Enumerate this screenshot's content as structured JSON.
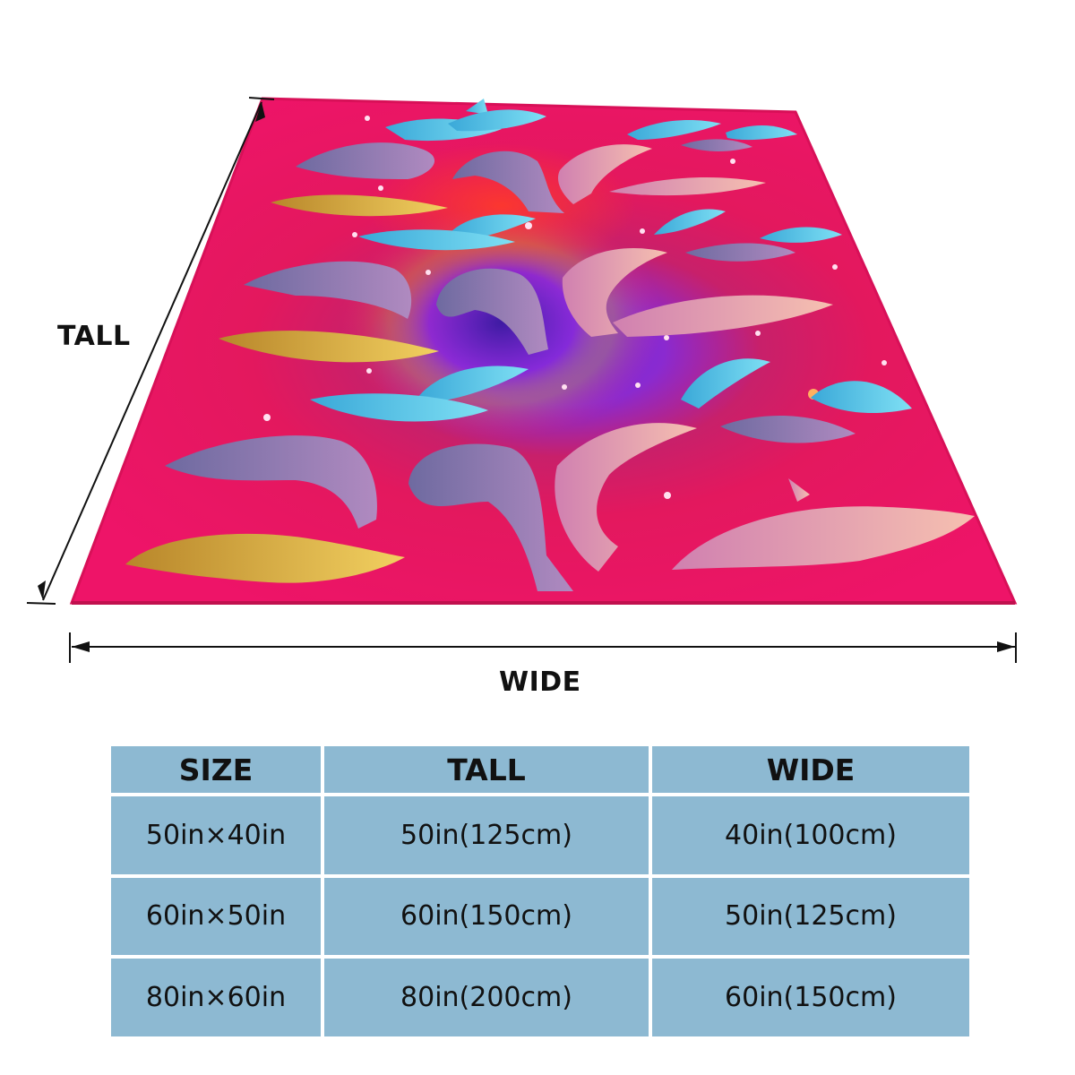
{
  "labels": {
    "tall": "TALL",
    "wide": "WIDE"
  },
  "illustration": {
    "subject": "pink rainbow dolphin blanket",
    "colors": {
      "edge": "#e9155f",
      "center_red": "#ff2a3a",
      "center_violet": "#7b1fd6",
      "dolphin_blue": "#4ec6ea",
      "dolphin_purple": "#8e7aa8",
      "dolphin_gold": "#e3b23c",
      "dolphin_pink": "#e9a0c8"
    }
  },
  "table": {
    "headers": [
      "SIZE",
      "TALL",
      "WIDE"
    ],
    "rows": [
      [
        "50in×40in",
        "50in(125cm)",
        "40in(100cm)"
      ],
      [
        "60in×50in",
        "60in(150cm)",
        "50in(125cm)"
      ],
      [
        "80in×60in",
        "80in(200cm)",
        "60in(150cm)"
      ]
    ]
  }
}
